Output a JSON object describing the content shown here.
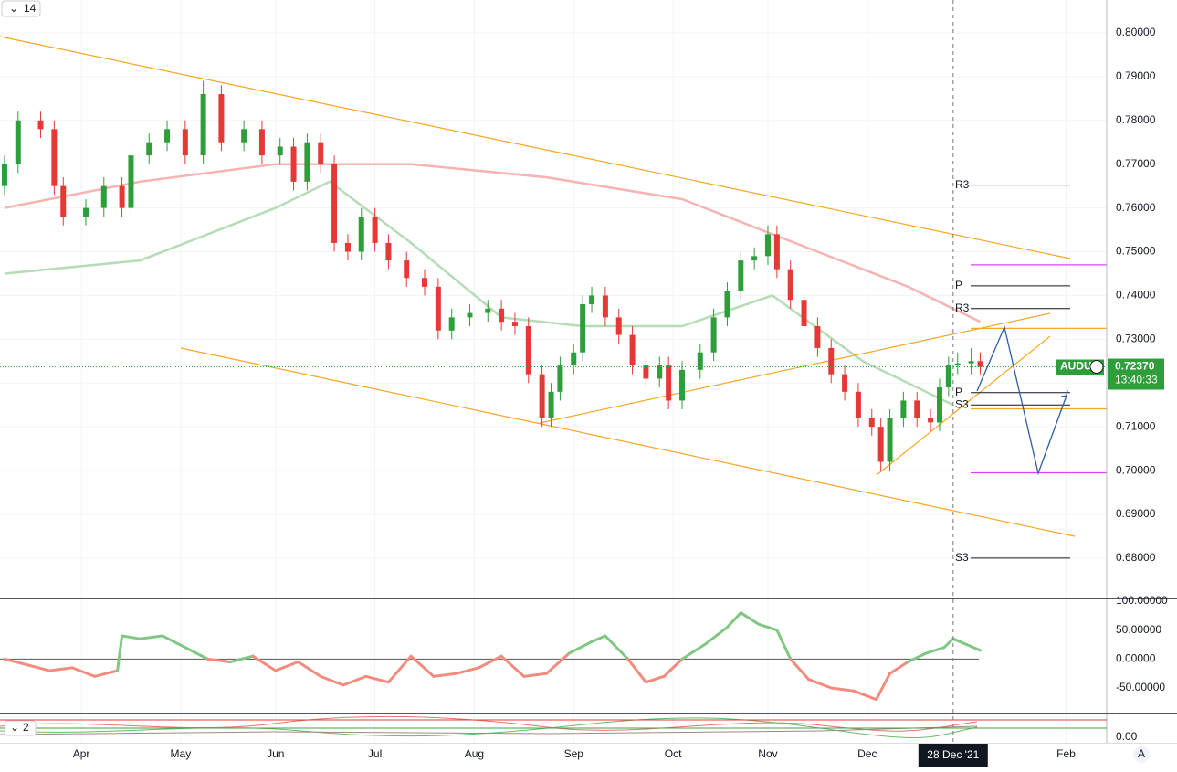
{
  "chart_data": {
    "type": "candlestick",
    "symbol": "AUDU",
    "indicator_label": "14",
    "last_price": {
      "value": 0.7237,
      "label": "0.72370"
    },
    "countdown": "13:40:33",
    "up_color": "#2e9e3a",
    "down_color": "#e53935",
    "x": [
      0,
      3,
      8,
      11,
      13,
      18,
      22,
      26,
      28,
      32,
      36,
      40,
      44,
      48,
      53,
      57,
      61,
      64,
      67,
      70,
      73,
      76,
      79,
      82,
      85,
      89,
      93,
      96,
      99,
      103,
      107,
      110,
      113,
      116,
      119,
      121,
      123,
      126,
      128,
      130,
      133,
      136,
      139,
      142,
      145,
      147,
      150,
      154,
      157,
      160,
      163,
      166,
      169,
      171,
      174,
      177,
      180,
      183,
      186,
      189,
      192,
      194,
      196,
      199,
      202,
      205,
      207,
      209,
      211,
      214,
      216
    ],
    "open": [
      0.765,
      0.77,
      0.78,
      0.778,
      0.765,
      0.758,
      0.76,
      0.765,
      0.76,
      0.772,
      0.775,
      0.778,
      0.772,
      0.786,
      0.775,
      0.778,
      0.772,
      0.774,
      0.766,
      0.775,
      0.77,
      0.752,
      0.75,
      0.758,
      0.752,
      0.748,
      0.744,
      0.742,
      0.732,
      0.735,
      0.736,
      0.737,
      0.734,
      0.733,
      0.722,
      0.712,
      0.718,
      0.724,
      0.727,
      0.738,
      0.74,
      0.735,
      0.731,
      0.724,
      0.721,
      0.724,
      0.716,
      0.723,
      0.727,
      0.735,
      0.741,
      0.748,
      0.749,
      0.754,
      0.746,
      0.739,
      0.733,
      0.728,
      0.722,
      0.718,
      0.712,
      0.71,
      0.702,
      0.712,
      0.716,
      0.712,
      0.711,
      0.719,
      0.724,
      0.7245,
      0.725
    ],
    "high": [
      0.772,
      0.782,
      0.782,
      0.78,
      0.767,
      0.762,
      0.767,
      0.767,
      0.774,
      0.777,
      0.78,
      0.78,
      0.789,
      0.788,
      0.78,
      0.78,
      0.776,
      0.776,
      0.777,
      0.777,
      0.772,
      0.754,
      0.76,
      0.76,
      0.754,
      0.75,
      0.746,
      0.744,
      0.737,
      0.738,
      0.739,
      0.739,
      0.736,
      0.735,
      0.724,
      0.72,
      0.726,
      0.729,
      0.74,
      0.742,
      0.742,
      0.737,
      0.733,
      0.726,
      0.726,
      0.726,
      0.725,
      0.729,
      0.737,
      0.743,
      0.75,
      0.751,
      0.756,
      0.756,
      0.748,
      0.741,
      0.735,
      0.73,
      0.724,
      0.72,
      0.714,
      0.712,
      0.714,
      0.718,
      0.718,
      0.714,
      0.721,
      0.726,
      0.727,
      0.728,
      0.727
    ],
    "low": [
      0.763,
      0.768,
      0.776,
      0.763,
      0.756,
      0.756,
      0.758,
      0.758,
      0.758,
      0.77,
      0.773,
      0.77,
      0.77,
      0.773,
      0.773,
      0.77,
      0.77,
      0.764,
      0.764,
      0.768,
      0.75,
      0.748,
      0.748,
      0.75,
      0.746,
      0.742,
      0.74,
      0.73,
      0.73,
      0.733,
      0.734,
      0.732,
      0.731,
      0.72,
      0.71,
      0.71,
      0.716,
      0.722,
      0.725,
      0.736,
      0.733,
      0.729,
      0.722,
      0.719,
      0.719,
      0.714,
      0.714,
      0.721,
      0.725,
      0.733,
      0.739,
      0.746,
      0.747,
      0.744,
      0.737,
      0.731,
      0.726,
      0.72,
      0.716,
      0.71,
      0.708,
      0.7,
      0.7,
      0.71,
      0.71,
      0.709,
      0.709,
      0.717,
      0.722,
      0.722,
      0.722
    ],
    "close": [
      0.77,
      0.78,
      0.778,
      0.765,
      0.758,
      0.76,
      0.765,
      0.76,
      0.772,
      0.775,
      0.778,
      0.772,
      0.786,
      0.775,
      0.778,
      0.772,
      0.774,
      0.766,
      0.775,
      0.77,
      0.752,
      0.75,
      0.758,
      0.752,
      0.748,
      0.744,
      0.742,
      0.732,
      0.735,
      0.736,
      0.737,
      0.734,
      0.733,
      0.722,
      0.712,
      0.718,
      0.724,
      0.727,
      0.738,
      0.74,
      0.735,
      0.731,
      0.724,
      0.721,
      0.724,
      0.716,
      0.723,
      0.727,
      0.735,
      0.741,
      0.748,
      0.749,
      0.754,
      0.746,
      0.739,
      0.733,
      0.728,
      0.722,
      0.718,
      0.712,
      0.71,
      0.702,
      0.712,
      0.716,
      0.712,
      0.711,
      0.719,
      0.724,
      0.7245,
      0.725,
      0.7237
    ],
    "xlim": [
      -1,
      244
    ],
    "xticks": [
      {
        "value": 17,
        "label": "Apr"
      },
      {
        "value": 39,
        "label": "May"
      },
      {
        "value": 60,
        "label": "Jun"
      },
      {
        "value": 82,
        "label": "Jul"
      },
      {
        "value": 104,
        "label": "Aug"
      },
      {
        "value": 126,
        "label": "Sep"
      },
      {
        "value": 148,
        "label": "Oct"
      },
      {
        "value": 169,
        "label": "Nov"
      },
      {
        "value": 191,
        "label": "Dec"
      },
      {
        "value": 235,
        "label": "Feb"
      }
    ],
    "crosshair": {
      "value": 210,
      "label": "28 Dec '21"
    },
    "ylim": [
      0.6708,
      0.8075
    ],
    "yticks": [
      {
        "value": 0.8,
        "label": "0.80000"
      },
      {
        "value": 0.79,
        "label": "0.79000"
      },
      {
        "value": 0.78,
        "label": "0.78000"
      },
      {
        "value": 0.77,
        "label": "0.77000"
      },
      {
        "value": 0.76,
        "label": "0.76000"
      },
      {
        "value": 0.75,
        "label": "0.75000"
      },
      {
        "value": 0.74,
        "label": "0.74000"
      },
      {
        "value": 0.73,
        "label": "0.73000"
      },
      {
        "value": 0.72,
        "label": "0.72000"
      },
      {
        "value": 0.71,
        "label": "0.71000"
      },
      {
        "value": 0.7,
        "label": "0.70000"
      },
      {
        "value": 0.69,
        "label": "0.69000"
      },
      {
        "value": 0.68,
        "label": "0.68000"
      }
    ],
    "grid": true,
    "levels": [
      {
        "label": "R3",
        "value": 0.7652
      },
      {
        "label": "P",
        "value": 0.7422
      },
      {
        "label": "R3",
        "value": 0.737
      },
      {
        "label": "P",
        "value": 0.7178
      },
      {
        "label": "S3",
        "value": 0.715
      },
      {
        "label": "S3",
        "value": 0.68
      }
    ],
    "hlines": [
      {
        "value": 0.747,
        "color": "#e040fb"
      },
      {
        "value": 0.6995,
        "color": "#e040fb"
      },
      {
        "value": 0.7325,
        "color": "#f5a623"
      },
      {
        "value": 0.7141,
        "color": "#f5a623"
      }
    ],
    "overlays": [
      {
        "color": "#f7b3b0",
        "x": [
          0,
          30,
          60,
          90,
          120,
          150,
          180,
          200,
          216
        ],
        "values": [
          0.76,
          0.766,
          0.77,
          0.77,
          0.767,
          0.762,
          0.75,
          0.742,
          0.734
        ]
      },
      {
        "color": "#b5dcb6",
        "x": [
          0,
          30,
          60,
          72,
          90,
          110,
          128,
          150,
          170,
          190,
          210
        ],
        "values": [
          0.745,
          0.748,
          0.76,
          0.766,
          0.752,
          0.735,
          0.733,
          0.733,
          0.74,
          0.725,
          0.715
        ]
      }
    ],
    "oscillator": {
      "x": [
        0,
        5,
        10,
        15,
        20,
        25,
        26,
        30,
        35,
        40,
        45,
        50,
        55,
        60,
        65,
        70,
        75,
        80,
        85,
        90,
        95,
        100,
        105,
        110,
        115,
        120,
        125,
        130,
        133,
        138,
        142,
        146,
        150,
        155,
        160,
        163,
        167,
        171,
        174,
        178,
        183,
        188,
        193,
        196,
        200,
        204,
        208,
        210,
        213,
        216
      ],
      "values": [
        0,
        -10,
        -20,
        -15,
        -30,
        -20,
        40,
        35,
        40,
        20,
        0,
        -5,
        5,
        -20,
        -5,
        -30,
        -45,
        -30,
        -40,
        5,
        -30,
        -25,
        -15,
        5,
        -30,
        -25,
        10,
        30,
        40,
        0,
        -40,
        -30,
        0,
        25,
        55,
        80,
        60,
        50,
        0,
        -35,
        -50,
        -55,
        -70,
        -25,
        -5,
        10,
        20,
        35,
        25,
        15
      ],
      "up_color": "#81c784",
      "down_color": "#f28b7d",
      "ylim": [
        -92.6,
        103.2
      ],
      "yticks": [
        {
          "value": 100,
          "label": "100.00000"
        },
        {
          "value": 50,
          "label": "50.00000"
        },
        {
          "value": 0,
          "label": "0.00000"
        },
        {
          "value": -50,
          "label": "-50.00000"
        }
      ]
    },
    "pane2": {
      "label": "2",
      "ylim": [
        -10,
        40
      ],
      "yticks": [
        {
          "value": 0,
          "label": "0.00"
        }
      ]
    },
    "scale_mode": "A"
  }
}
